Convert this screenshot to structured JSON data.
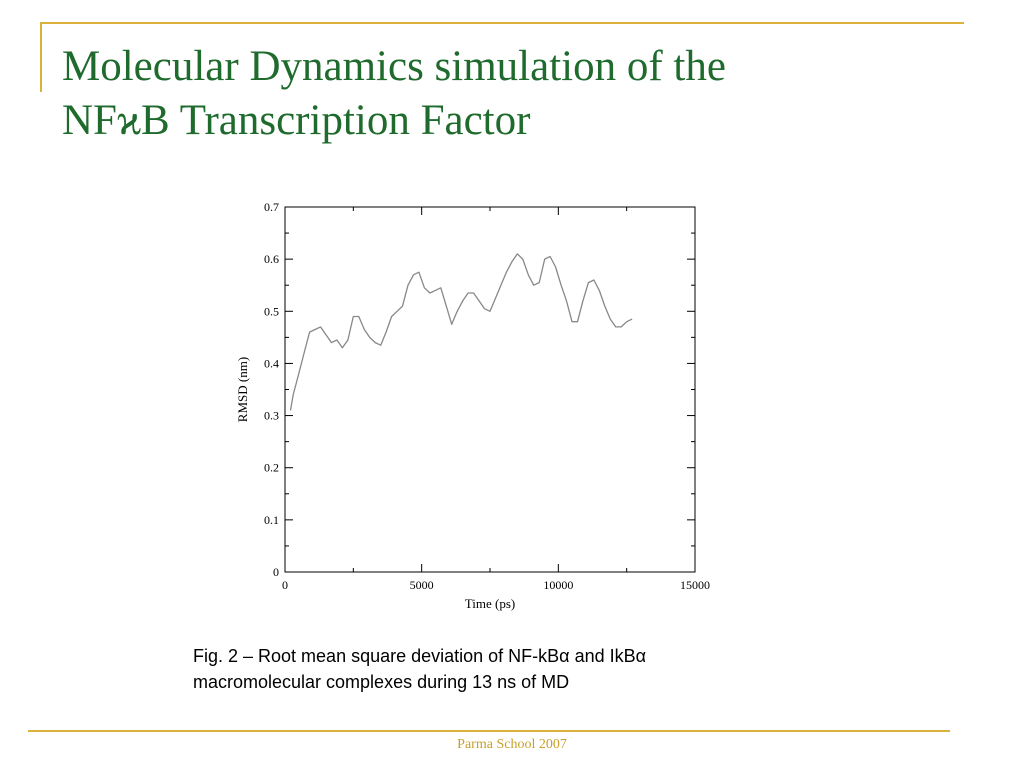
{
  "slide": {
    "title_line1": "Molecular Dynamics simulation of  the",
    "title_line2": "NFϰB Transcription Factor",
    "caption_line1": "Fig. 2 – Root mean square deviation of NF-kBα and IkBα",
    "caption_line2": "macromolecular complexes during 13 ns of MD",
    "footer": "Parma School 2007",
    "accent_color": "#d9b13b",
    "title_color": "#1f6b2d"
  },
  "chart_data": {
    "type": "line",
    "xlabel": "Time (ps)",
    "ylabel": "RMSD (nm)",
    "xlim": [
      0,
      15000
    ],
    "ylim": [
      0,
      0.7
    ],
    "xticks": [
      0,
      5000,
      10000,
      15000
    ],
    "yticks": [
      0,
      0.1,
      0.2,
      0.3,
      0.4,
      0.5,
      0.6,
      0.7
    ],
    "grid": false,
    "series": [
      {
        "color": "#888888",
        "x": [
          200,
          300,
          500,
          700,
          900,
          1100,
          1300,
          1500,
          1700,
          1900,
          2100,
          2300,
          2500,
          2700,
          2900,
          3100,
          3300,
          3500,
          3700,
          3900,
          4100,
          4300,
          4500,
          4700,
          4900,
          5100,
          5300,
          5500,
          5700,
          5900,
          6100,
          6300,
          6500,
          6700,
          6900,
          7100,
          7300,
          7500,
          7700,
          7900,
          8100,
          8300,
          8500,
          8700,
          8900,
          9100,
          9300,
          9500,
          9700,
          9900,
          10100,
          10300,
          10500,
          10700,
          10900,
          11100,
          11300,
          11500,
          11700,
          11900,
          12100,
          12300,
          12500,
          12700
        ],
        "y": [
          0.31,
          0.34,
          0.38,
          0.42,
          0.46,
          0.465,
          0.47,
          0.455,
          0.44,
          0.445,
          0.43,
          0.445,
          0.49,
          0.49,
          0.465,
          0.45,
          0.44,
          0.435,
          0.46,
          0.49,
          0.5,
          0.51,
          0.55,
          0.57,
          0.575,
          0.545,
          0.535,
          0.54,
          0.545,
          0.51,
          0.475,
          0.5,
          0.52,
          0.535,
          0.535,
          0.52,
          0.505,
          0.5,
          0.525,
          0.55,
          0.575,
          0.595,
          0.61,
          0.6,
          0.57,
          0.55,
          0.555,
          0.6,
          0.605,
          0.585,
          0.55,
          0.52,
          0.48,
          0.48,
          0.52,
          0.555,
          0.56,
          0.54,
          0.51,
          0.485,
          0.47,
          0.47,
          0.48,
          0.485
        ]
      }
    ]
  }
}
